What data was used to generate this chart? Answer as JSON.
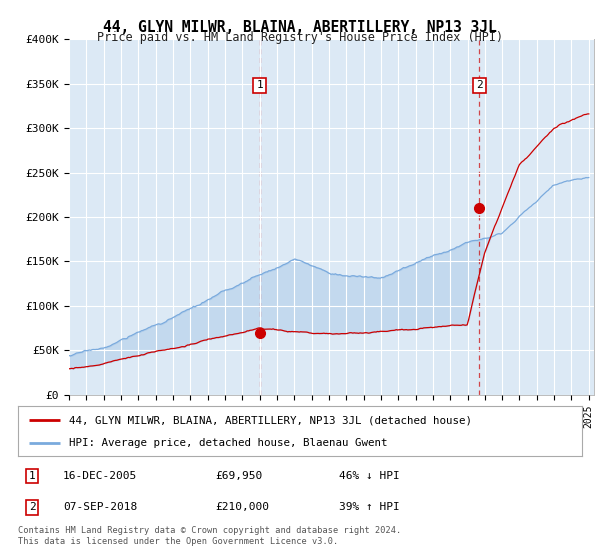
{
  "title": "44, GLYN MILWR, BLAINA, ABERTILLERY, NP13 3JL",
  "subtitle": "Price paid vs. HM Land Registry's House Price Index (HPI)",
  "ylim": [
    0,
    400000
  ],
  "yticks": [
    0,
    50000,
    100000,
    150000,
    200000,
    250000,
    300000,
    350000,
    400000
  ],
  "ytick_labels": [
    "£0",
    "£50K",
    "£100K",
    "£150K",
    "£200K",
    "£250K",
    "£300K",
    "£350K",
    "£400K"
  ],
  "background_color": "#dce9f5",
  "sale1_date": "16-DEC-2005",
  "sale1_price": "£69,950",
  "sale1_hpi": "46% ↓ HPI",
  "sale1_year": 2006.0,
  "sale1_value": 69950,
  "sale2_date": "07-SEP-2018",
  "sale2_price": "£210,000",
  "sale2_hpi": "39% ↑ HPI",
  "sale2_year": 2018.69,
  "sale2_value": 210000,
  "red_color": "#cc0000",
  "blue_color": "#7aaadd",
  "legend_label_red": "44, GLYN MILWR, BLAINA, ABERTILLERY, NP13 3JL (detached house)",
  "legend_label_blue": "HPI: Average price, detached house, Blaenau Gwent",
  "footer": "Contains HM Land Registry data © Crown copyright and database right 2024.\nThis data is licensed under the Open Government Licence v3.0."
}
